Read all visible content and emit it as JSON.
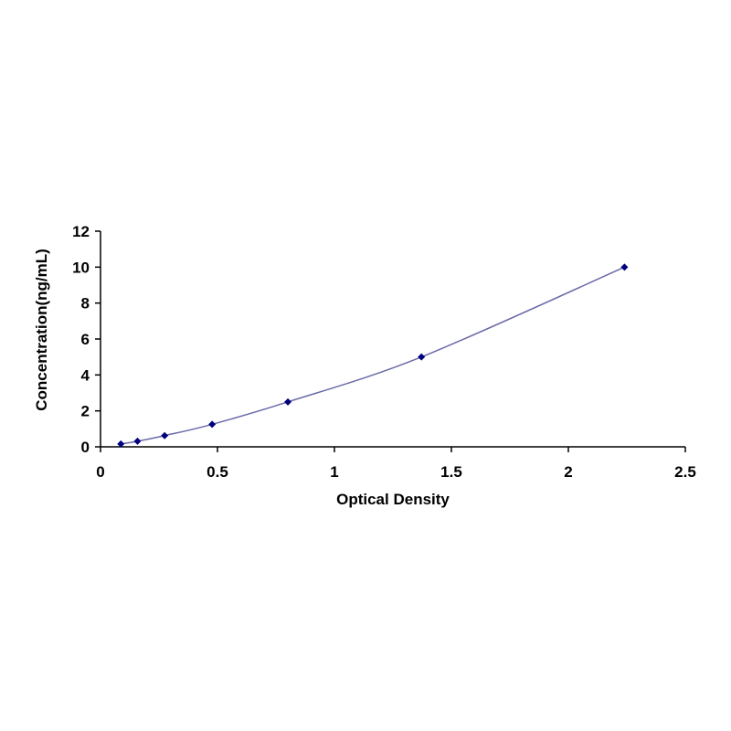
{
  "chart_data": {
    "type": "scatter",
    "xlabel": "Optical Density",
    "ylabel": "Concentration(ng/mL)",
    "xlim": [
      0,
      2.5
    ],
    "ylim": [
      0,
      12
    ],
    "x_ticks": [
      "0",
      "0.5",
      "1",
      "1.5",
      "2",
      "2.5"
    ],
    "y_ticks": [
      "0",
      "2",
      "4",
      "6",
      "8",
      "10",
      "12"
    ],
    "grid": false,
    "legend": "none",
    "series": [
      {
        "x": [
          0.087,
          0.158,
          0.274,
          0.477,
          0.801,
          1.372,
          2.24
        ],
        "y": [
          0.156,
          0.312,
          0.625,
          1.25,
          2.5,
          5,
          10
        ],
        "marker": "diamond",
        "trendline": "smooth",
        "color": "#00007f",
        "line_color": "#6a6aa8"
      }
    ]
  }
}
